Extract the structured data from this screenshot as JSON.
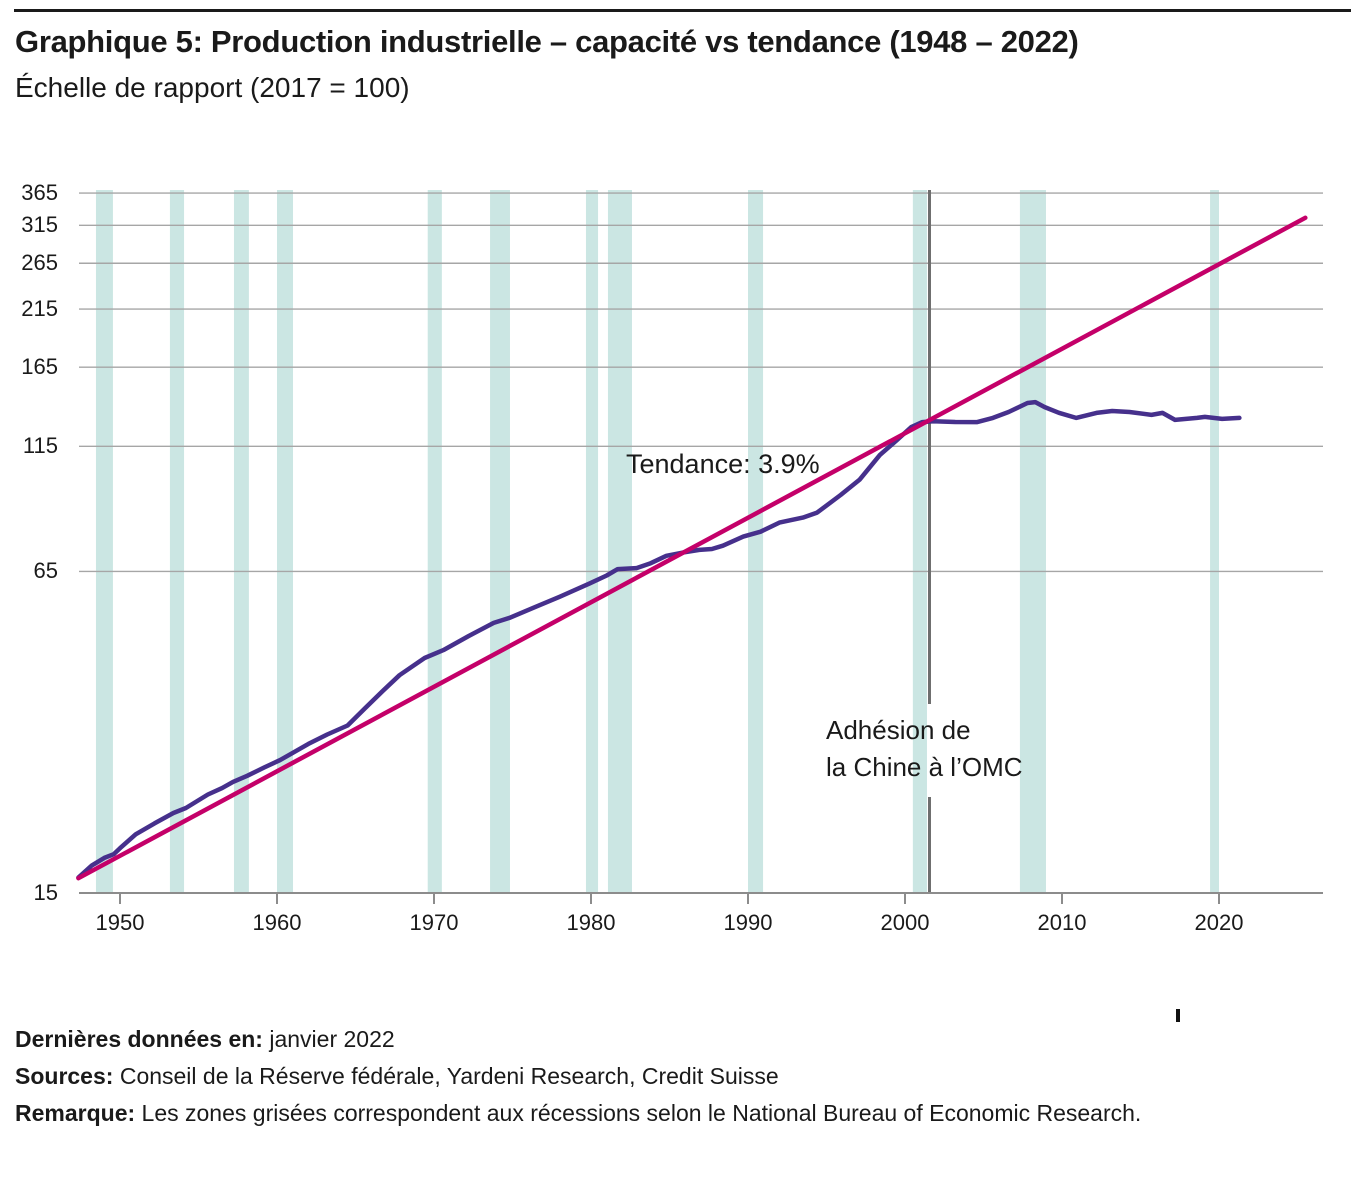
{
  "header": {
    "title": "Graphique 5: Production industrielle – capacité vs tendance (1948 – 2022)",
    "subtitle": "Échelle de rapport (2017 = 100)"
  },
  "footer": {
    "lines": [
      {
        "label": "Dernières données en:",
        "text": " janvier 2022"
      },
      {
        "label": "Sources:",
        "text": " Conseil de la Réserve fédérale, Yardeni Research, Credit Suisse"
      },
      {
        "label": "Remarque:",
        "text": " Les zones grisées correspondent aux récessions selon le National Bureau of Economic Research."
      }
    ]
  },
  "colors": {
    "capacity_line": "#46308c",
    "trend_line": "#c40069",
    "recession_band": "#cbe6e3",
    "gridline": "#a6a6a6",
    "axis": "#8c8c8c",
    "event_line": "#6e6e6e",
    "text": "#1a1a1a"
  },
  "chart_data": {
    "type": "line",
    "title": "Graphique 5: Production industrielle – capacité vs tendance (1948 – 2022)",
    "subtitle": "Échelle de rapport (2017 = 100)",
    "y_axis": {
      "scale": "log",
      "ticks": [
        365,
        315,
        265,
        215,
        165,
        115,
        65,
        15
      ],
      "unit": "index, 2017 = 100"
    },
    "x_axis": {
      "ticks": [
        1950,
        1960,
        1970,
        1980,
        1990,
        2000,
        2010,
        2020
      ],
      "range": [
        1947.3,
        2026.5
      ]
    },
    "grid": "horizontal-only",
    "legend": "none",
    "annotations": {
      "trend_label": "Tendance: 3.9%",
      "event_label_line1": "Adhésion de",
      "event_label_line2": "la Chine à l’OMC"
    },
    "event_line": {
      "year": 2001.56,
      "label": "Adhésion de la Chine à l’OMC"
    },
    "recessions": [
      [
        1948.47,
        1949.55
      ],
      [
        1953.18,
        1954.08
      ],
      [
        1957.26,
        1958.21
      ],
      [
        1960.0,
        1961.02
      ],
      [
        1969.6,
        1970.5
      ],
      [
        1973.57,
        1974.84
      ],
      [
        1979.68,
        1980.45
      ],
      [
        1981.08,
        1982.61
      ],
      [
        1990.0,
        1990.96
      ],
      [
        2000.5,
        2001.4
      ],
      [
        2007.32,
        2008.98
      ],
      [
        2019.43,
        2020.0
      ]
    ],
    "series": [
      {
        "name": "Capacité",
        "color": "#46308c",
        "points": [
          [
            1947.35,
            16.1
          ],
          [
            1948.2,
            17.0
          ],
          [
            1949.0,
            17.6
          ],
          [
            1949.6,
            17.9
          ],
          [
            1950.0,
            18.4
          ],
          [
            1951.0,
            19.6
          ],
          [
            1952.2,
            20.6
          ],
          [
            1953.4,
            21.6
          ],
          [
            1954.2,
            22.1
          ],
          [
            1955.6,
            23.5
          ],
          [
            1956.5,
            24.2
          ],
          [
            1957.2,
            24.9
          ],
          [
            1958.1,
            25.6
          ],
          [
            1959.2,
            26.6
          ],
          [
            1960.2,
            27.5
          ],
          [
            1960.9,
            28.3
          ],
          [
            1962.0,
            29.6
          ],
          [
            1963.2,
            30.9
          ],
          [
            1964.5,
            32.2
          ],
          [
            1965.6,
            34.8
          ],
          [
            1966.7,
            37.6
          ],
          [
            1967.8,
            40.5
          ],
          [
            1969.4,
            43.8
          ],
          [
            1970.6,
            45.4
          ],
          [
            1972.2,
            48.4
          ],
          [
            1973.8,
            51.4
          ],
          [
            1974.8,
            52.6
          ],
          [
            1976.4,
            55.2
          ],
          [
            1978.0,
            57.9
          ],
          [
            1979.9,
            61.5
          ],
          [
            1981.0,
            63.8
          ],
          [
            1981.7,
            65.7
          ],
          [
            1982.9,
            66.0
          ],
          [
            1983.8,
            67.5
          ],
          [
            1984.8,
            69.8
          ],
          [
            1985.9,
            70.9
          ],
          [
            1986.9,
            71.7
          ],
          [
            1987.7,
            72.0
          ],
          [
            1988.4,
            73.1
          ],
          [
            1989.7,
            76.2
          ],
          [
            1990.8,
            77.9
          ],
          [
            1992.0,
            81.2
          ],
          [
            1993.5,
            83.1
          ],
          [
            1994.4,
            85.0
          ],
          [
            1995.9,
            92.1
          ],
          [
            1997.1,
            98.7
          ],
          [
            1998.4,
            110.6
          ],
          [
            1999.5,
            118.4
          ],
          [
            2000.4,
            125.6
          ],
          [
            2001.1,
            128.4
          ],
          [
            2001.8,
            128.9
          ],
          [
            2003.2,
            128.5
          ],
          [
            2004.6,
            128.4
          ],
          [
            2005.6,
            130.9
          ],
          [
            2006.6,
            134.5
          ],
          [
            2007.8,
            140.1
          ],
          [
            2008.3,
            140.7
          ],
          [
            2008.9,
            137.5
          ],
          [
            2009.8,
            134.0
          ],
          [
            2010.9,
            130.9
          ],
          [
            2012.2,
            133.9
          ],
          [
            2013.2,
            135.1
          ],
          [
            2014.3,
            134.5
          ],
          [
            2015.7,
            132.7
          ],
          [
            2016.4,
            133.9
          ],
          [
            2017.2,
            129.7
          ],
          [
            2018.6,
            130.9
          ],
          [
            2019.1,
            131.5
          ],
          [
            2020.2,
            130.3
          ],
          [
            2021.3,
            130.9
          ]
        ]
      },
      {
        "name": "Tendance 3.9%",
        "color": "#c40069",
        "points": [
          [
            1947.35,
            16.05
          ],
          [
            2025.5,
            326
          ]
        ]
      }
    ]
  }
}
